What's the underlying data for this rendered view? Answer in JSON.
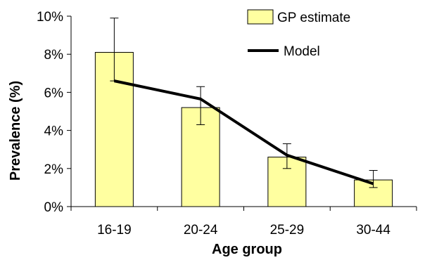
{
  "chart_data": {
    "type": "bar",
    "title": "",
    "xlabel": "Age group",
    "ylabel": "Prevalence (%)",
    "categories": [
      "16-19",
      "20-24",
      "25-29",
      "30-44"
    ],
    "ylim": [
      0,
      10
    ],
    "yticks": [
      {
        "value": 0,
        "label": "0%"
      },
      {
        "value": 2,
        "label": "2%"
      },
      {
        "value": 4,
        "label": "4%"
      },
      {
        "value": 6,
        "label": "6%"
      },
      {
        "value": 8,
        "label": "8%"
      },
      {
        "value": 10,
        "label": "10%"
      }
    ],
    "grid": false,
    "legend_position": "top-right",
    "series": [
      {
        "name": "GP estimate",
        "kind": "bar",
        "color": "#ffffa0",
        "values": [
          8.1,
          5.2,
          2.6,
          1.4
        ],
        "error_low": [
          6.6,
          4.3,
          2.0,
          1.0
        ],
        "error_high": [
          9.9,
          6.3,
          3.3,
          1.9
        ]
      },
      {
        "name": "Model",
        "kind": "line",
        "color": "#000000",
        "values": [
          6.6,
          5.65,
          2.7,
          1.2
        ]
      }
    ]
  }
}
